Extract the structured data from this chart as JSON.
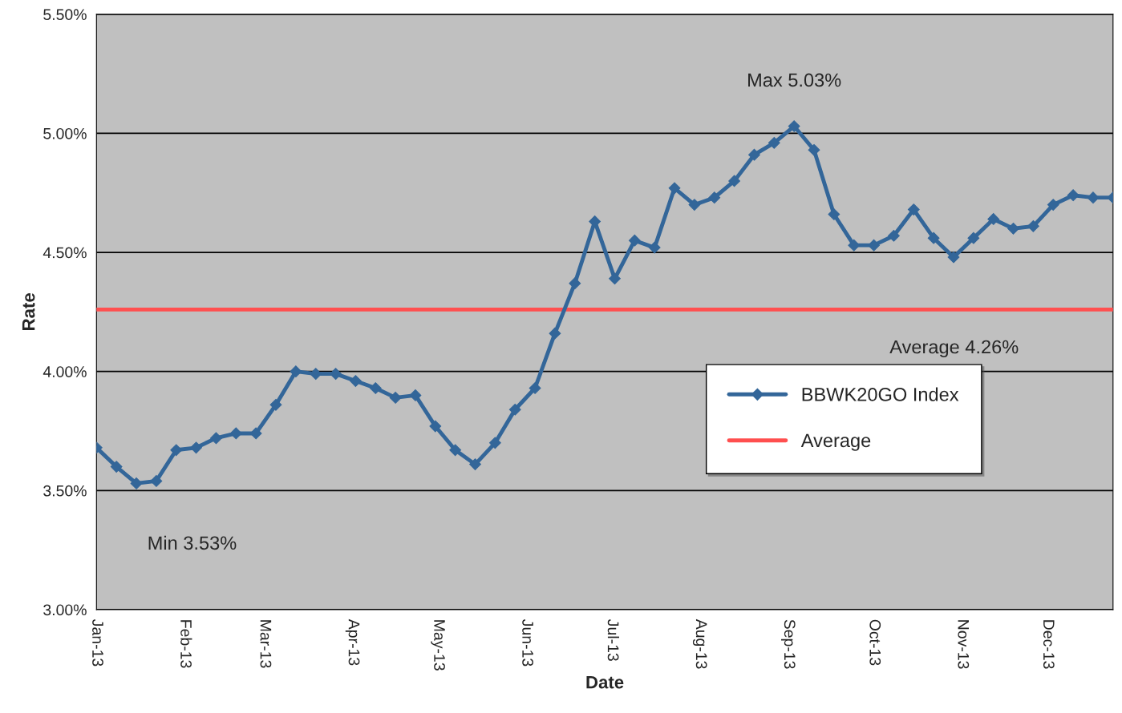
{
  "chart_data": {
    "type": "line",
    "xlabel": "Date",
    "ylabel": "Rate",
    "x": [
      "2013-01-01",
      "2013-01-08",
      "2013-01-15",
      "2013-01-22",
      "2013-01-29",
      "2013-02-05",
      "2013-02-12",
      "2013-02-19",
      "2013-02-26",
      "2013-03-05",
      "2013-03-12",
      "2013-03-19",
      "2013-03-26",
      "2013-04-02",
      "2013-04-09",
      "2013-04-16",
      "2013-04-23",
      "2013-04-30",
      "2013-05-07",
      "2013-05-14",
      "2013-05-21",
      "2013-05-28",
      "2013-06-04",
      "2013-06-11",
      "2013-06-18",
      "2013-06-25",
      "2013-07-02",
      "2013-07-09",
      "2013-07-16",
      "2013-07-23",
      "2013-07-30",
      "2013-08-06",
      "2013-08-13",
      "2013-08-20",
      "2013-08-27",
      "2013-09-03",
      "2013-09-10",
      "2013-09-17",
      "2013-09-24",
      "2013-10-01",
      "2013-10-08",
      "2013-10-15",
      "2013-10-22",
      "2013-10-29",
      "2013-11-05",
      "2013-11-12",
      "2013-11-19",
      "2013-11-26",
      "2013-12-03",
      "2013-12-10",
      "2013-12-17",
      "2013-12-24"
    ],
    "series": [
      {
        "name": "BBWK20GO Index",
        "color": "#336699",
        "values": [
          3.68,
          3.6,
          3.53,
          3.54,
          3.67,
          3.68,
          3.72,
          3.74,
          3.74,
          3.86,
          4.0,
          3.99,
          3.99,
          3.96,
          3.93,
          3.89,
          3.9,
          3.77,
          3.67,
          3.61,
          3.7,
          3.84,
          3.93,
          4.16,
          4.37,
          4.63,
          4.39,
          4.55,
          4.52,
          4.77,
          4.7,
          4.73,
          4.8,
          4.91,
          4.96,
          5.03,
          4.93,
          4.66,
          4.53,
          4.53,
          4.57,
          4.68,
          4.56,
          4.48,
          4.56,
          4.64,
          4.6,
          4.61,
          4.7,
          4.74,
          4.73,
          4.73
        ]
      }
    ],
    "ref_lines": [
      {
        "axis": "y",
        "value": 4.26,
        "label": "Average",
        "color": "#ff4f4f"
      }
    ],
    "annotations": [
      {
        "text": "Max 5.03%",
        "x": "2013-09-03",
        "y": 5.03
      },
      {
        "text": "Min 3.53%",
        "x": "2013-01-15",
        "y": 3.53
      },
      {
        "text": "Average 4.26%",
        "x": "2013-09-24",
        "y": 4.26
      }
    ],
    "xlim": [
      "2013-01-01",
      "2013-12-24"
    ],
    "xticks": [
      {
        "value": "2013-01-01",
        "label": "Jan-13"
      },
      {
        "value": "2013-02-01",
        "label": "Feb-13"
      },
      {
        "value": "2013-03-01",
        "label": "Mar-13"
      },
      {
        "value": "2013-04-01",
        "label": "Apr-13"
      },
      {
        "value": "2013-05-01",
        "label": "May-13"
      },
      {
        "value": "2013-06-01",
        "label": "Jun-13"
      },
      {
        "value": "2013-07-01",
        "label": "Jul-13"
      },
      {
        "value": "2013-08-01",
        "label": "Aug-13"
      },
      {
        "value": "2013-09-01",
        "label": "Sep-13"
      },
      {
        "value": "2013-10-01",
        "label": "Oct-13"
      },
      {
        "value": "2013-11-01",
        "label": "Nov-13"
      },
      {
        "value": "2013-12-01",
        "label": "Dec-13"
      }
    ],
    "ylim": [
      3.0,
      5.5
    ],
    "yticks": [
      {
        "value": 3.0,
        "label": "3.00%"
      },
      {
        "value": 3.5,
        "label": "3.50%"
      },
      {
        "value": 4.0,
        "label": "4.00%"
      },
      {
        "value": 4.5,
        "label": "4.50%"
      },
      {
        "value": 5.0,
        "label": "5.00%"
      },
      {
        "value": 5.5,
        "label": "5.50%"
      }
    ],
    "grid": "y",
    "legend": "right",
    "marker": "diamond",
    "line_style": "solid"
  }
}
